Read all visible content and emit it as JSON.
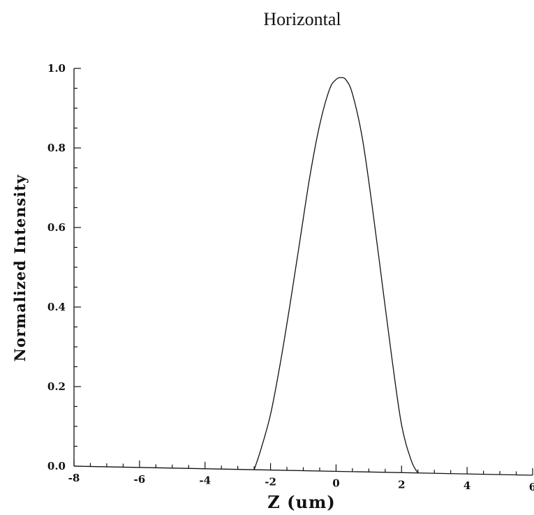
{
  "chart_data": {
    "type": "line",
    "title": "Horizontal",
    "xlabel": "Z (um)",
    "ylabel": "Normalized Intensity",
    "xlim": [
      -8,
      6
    ],
    "ylim": [
      0,
      1.0
    ],
    "x_ticks": [
      -8,
      -6,
      -4,
      -2,
      0,
      2,
      4,
      6
    ],
    "x_tick_labels": [
      "-8",
      "-6",
      "-4",
      "-2",
      "0",
      "2",
      "4",
      "6"
    ],
    "y_ticks": [
      0,
      0.2,
      0.4,
      0.6,
      0.8,
      1.0
    ],
    "y_tick_labels": [
      "0.0",
      "0.2",
      "0.4",
      "0.6",
      "0.8",
      "1.0"
    ],
    "grid": false,
    "series": [
      {
        "x": [
          -2.5,
          -2.3,
          -2.0,
          -1.7,
          -1.4,
          -1.1,
          -0.8,
          -0.5,
          -0.2,
          0.0,
          0.15,
          0.3,
          0.5,
          0.8,
          1.1,
          1.4,
          1.7,
          2.0,
          2.3,
          2.5
        ],
        "y": [
          0.0,
          0.05,
          0.14,
          0.27,
          0.42,
          0.58,
          0.74,
          0.87,
          0.96,
          0.985,
          0.99,
          0.985,
          0.95,
          0.84,
          0.67,
          0.48,
          0.29,
          0.12,
          0.03,
          0.0
        ]
      }
    ]
  }
}
